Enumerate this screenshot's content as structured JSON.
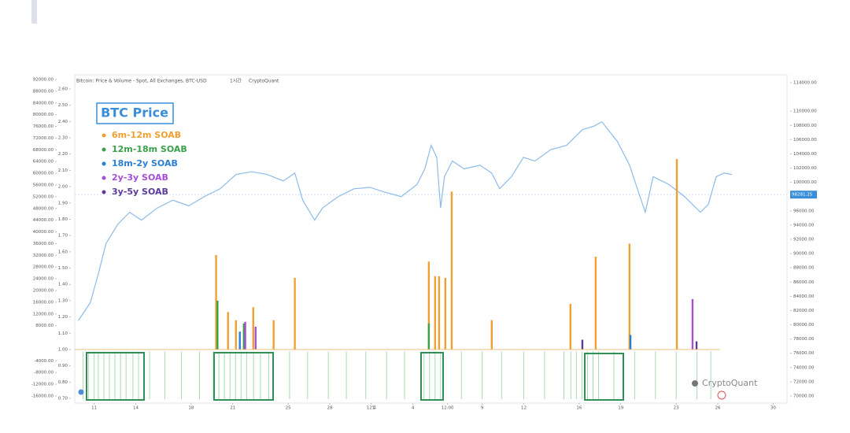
{
  "chart_data": {
    "type": "line",
    "title": "Bitcoin: Price & Volume - Spot, All Exchanges, BTC-USD",
    "subtitle": "1시간",
    "source": "CryptoQuant",
    "watermark": "CryptoQuant",
    "last_price": 98281.25,
    "baseline": 1,
    "grid": false,
    "xlim": [
      9.6,
      61
    ],
    "xticks": [
      {
        "value": 11,
        "label": "11"
      },
      {
        "value": 14,
        "label": "14"
      },
      {
        "value": 18,
        "label": "18"
      },
      {
        "value": 21,
        "label": "21"
      },
      {
        "value": 25,
        "label": "25"
      },
      {
        "value": 28,
        "label": "28"
      },
      {
        "value": 31,
        "label": "12월"
      },
      {
        "value": 34,
        "label": "4"
      },
      {
        "value": 36.5,
        "label": "12:00"
      },
      {
        "value": 39,
        "label": "9"
      },
      {
        "value": 42,
        "label": "12"
      },
      {
        "value": 46,
        "label": "16"
      },
      {
        "value": 49,
        "label": "19"
      },
      {
        "value": 53,
        "label": "23"
      },
      {
        "value": 56,
        "label": "26"
      },
      {
        "value": 60,
        "label": "30"
      }
    ],
    "ylim": [
      0.7,
      2.6
    ],
    "yticks": [
      {
        "value": 0.7,
        "label": "0.70"
      },
      {
        "value": 0.8,
        "label": "0.80"
      },
      {
        "value": 0.9,
        "label": "0.90"
      },
      {
        "value": 1.0,
        "label": "1.00"
      },
      {
        "value": 1.1,
        "label": "1.10"
      },
      {
        "value": 1.2,
        "label": "1.20"
      },
      {
        "value": 1.3,
        "label": "1.30"
      },
      {
        "value": 1.4,
        "label": "1.40"
      },
      {
        "value": 1.5,
        "label": "1.50"
      },
      {
        "value": 1.6,
        "label": "1.60"
      },
      {
        "value": 1.7,
        "label": "1.70"
      },
      {
        "value": 1.8,
        "label": "1.80"
      },
      {
        "value": 1.9,
        "label": "1.90"
      },
      {
        "value": 2.0,
        "label": "2.00"
      },
      {
        "value": 2.1,
        "label": "2.10"
      },
      {
        "value": 2.2,
        "label": "2.20"
      },
      {
        "value": 2.3,
        "label": "2.30"
      },
      {
        "value": 2.4,
        "label": "2.40"
      },
      {
        "value": 2.5,
        "label": "2.50"
      },
      {
        "value": 2.6,
        "label": "2.60"
      }
    ],
    "y2lim": [
      70000,
      114000
    ],
    "y2ticks": [
      {
        "value": 70000,
        "label": "70000.00"
      },
      {
        "value": 72000,
        "label": "72000.00"
      },
      {
        "value": 74000,
        "label": "74000.00"
      },
      {
        "value": 76000,
        "label": "76000.00"
      },
      {
        "value": 78000,
        "label": "78000.00"
      },
      {
        "value": 80000,
        "label": "80000.00"
      },
      {
        "value": 82000,
        "label": "82000.00"
      },
      {
        "value": 84000,
        "label": "84000.00"
      },
      {
        "value": 86000,
        "label": "86000.00"
      },
      {
        "value": 88000,
        "label": "88000.00"
      },
      {
        "value": 90000,
        "label": "90000.00"
      },
      {
        "value": 92000,
        "label": "92000.00"
      },
      {
        "value": 94000,
        "label": "94000.00"
      },
      {
        "value": 96000,
        "label": "96000.00"
      },
      {
        "value": 100000,
        "label": "100000.00"
      },
      {
        "value": 102000,
        "label": "102000.00"
      },
      {
        "value": 104000,
        "label": "104000.00"
      },
      {
        "value": 106000,
        "label": "106000.00"
      },
      {
        "value": 108000,
        "label": "108000.00"
      },
      {
        "value": 110000,
        "label": "110000.00"
      },
      {
        "value": 114000,
        "label": "114000.00"
      }
    ],
    "y3lim": [
      -16000,
      92000
    ],
    "y3ticks": [
      {
        "value": 92000,
        "label": "92000.00"
      },
      {
        "value": 88000,
        "label": "88000.00"
      },
      {
        "value": 84000,
        "label": "84000.00"
      },
      {
        "value": 80000,
        "label": "80000.00"
      },
      {
        "value": 76000,
        "label": "76000.00"
      },
      {
        "value": 72000,
        "label": "72000.00"
      },
      {
        "value": 68000,
        "label": "68000.00"
      },
      {
        "value": 64000,
        "label": "64000.00"
      },
      {
        "value": 60000,
        "label": "60000.00"
      },
      {
        "value": 56000,
        "label": "56000.00"
      },
      {
        "value": 52000,
        "label": "52000.00"
      },
      {
        "value": 48000,
        "label": "48000.00"
      },
      {
        "value": 44000,
        "label": "44000.00"
      },
      {
        "value": 40000,
        "label": "40000.00"
      },
      {
        "value": 36000,
        "label": "36000.00"
      },
      {
        "value": 32000,
        "label": "32000.00"
      },
      {
        "value": 28000,
        "label": "28000.00"
      },
      {
        "value": 24000,
        "label": "24000.00"
      },
      {
        "value": 20000,
        "label": "20000.00"
      },
      {
        "value": 16000,
        "label": "16000.00"
      },
      {
        "value": 12000,
        "label": "12000.00"
      },
      {
        "value": 8000,
        "label": "8000.00"
      },
      {
        "value": -4000,
        "label": "-4000.00"
      },
      {
        "value": -8000,
        "label": "-8000.00"
      },
      {
        "value": -12000,
        "label": "-12000.00"
      },
      {
        "value": -16000,
        "label": "-16000.00"
      }
    ],
    "series": [
      {
        "name": "BTC Price",
        "type": "line",
        "axis": "y2",
        "color": "#8cbbe8",
        "x": [
          9.86,
          10.72,
          11.28,
          11.85,
          12.7,
          13.56,
          14.41,
          15.55,
          16.68,
          17.82,
          18.95,
          20.09,
          21.23,
          22.36,
          23.5,
          24.64,
          25.48,
          26.05,
          26.91,
          27.48,
          28.61,
          29.75,
          30.89,
          32.02,
          33.16,
          34.3,
          34.86,
          35.32,
          35.72,
          36.0,
          36.28,
          36.85,
          37.7,
          38.84,
          39.69,
          40.26,
          41.11,
          41.98,
          42.81,
          43.95,
          45.09,
          46.23,
          47.07,
          47.64,
          48.77,
          49.64,
          50.2,
          50.77,
          51.34,
          52.48,
          53.61,
          54.18,
          54.75,
          55.32,
          55.89,
          56.45,
          57.02
        ],
        "values": [
          80600,
          83100,
          87000,
          91400,
          94100,
          95800,
          94700,
          96400,
          97500,
          96700,
          98000,
          99100,
          101100,
          101500,
          101100,
          100200,
          101300,
          97500,
          94700,
          96400,
          98000,
          99100,
          99300,
          98600,
          98000,
          99700,
          101900,
          105200,
          103500,
          96400,
          100800,
          103000,
          101900,
          102400,
          101300,
          99100,
          100800,
          103500,
          103000,
          104600,
          105200,
          107400,
          107900,
          108500,
          105700,
          102400,
          99100,
          95800,
          100800,
          99700,
          98000,
          96900,
          95800,
          96900,
          100800,
          101300,
          101100
        ]
      },
      {
        "name": "6m-12m SOAB",
        "type": "bar",
        "axis": "y",
        "color": "#f0a030",
        "x": [
          19.8,
          20.66,
          21.23,
          22.48,
          23.95,
          25.48,
          35.15,
          35.6,
          35.89,
          36.34,
          36.8,
          39.69,
          45.37,
          47.19,
          49.63,
          53.05
        ],
        "values": [
          1.58,
          1.23,
          1.18,
          1.26,
          1.18,
          1.44,
          1.54,
          1.45,
          1.45,
          1.44,
          1.97,
          1.18,
          1.28,
          1.57,
          1.65,
          2.17
        ]
      },
      {
        "name": "12m-18m SOAB",
        "type": "bar",
        "axis": "y",
        "color": "#3aa04a",
        "x": [
          19.9,
          21.8,
          35.15
        ],
        "values": [
          1.3,
          1.16,
          1.16
        ]
      },
      {
        "name": "18m-2y SOAB",
        "type": "bar",
        "axis": "y",
        "color": "#2a7fd0",
        "x": [
          21.51,
          49.7
        ],
        "values": [
          1.11,
          1.09
        ]
      },
      {
        "name": "2y-3y SOAB",
        "type": "bar",
        "axis": "y",
        "color": "#a64fd6",
        "x": [
          21.9,
          22.65,
          54.18
        ],
        "values": [
          1.17,
          1.14,
          1.31
        ]
      },
      {
        "name": "3y-5y SOAB",
        "type": "bar",
        "axis": "y",
        "color": "#5b3a9a",
        "x": [
          46.23,
          54.47
        ],
        "values": [
          1.06,
          1.05
        ]
      }
    ],
    "volume_markers": {
      "color": "#a6dbb0",
      "x": [
        10.2,
        10.6,
        11.0,
        11.3,
        11.7,
        12.1,
        12.5,
        12.9,
        13.3,
        13.8,
        14.2,
        15.0,
        16.1,
        17.3,
        18.6,
        19.6,
        20.0,
        20.4,
        20.8,
        21.2,
        21.6,
        22.0,
        22.5,
        23.0,
        23.6,
        25.1,
        26.4,
        27.9,
        29.2,
        30.6,
        32.1,
        33.4,
        34.8,
        35.2,
        35.6,
        36.0,
        37.5,
        39.0,
        40.4,
        42.0,
        43.5,
        44.9,
        45.4,
        45.8,
        46.2,
        46.6,
        47.0,
        47.4,
        48.5,
        50.0,
        51.5,
        53.0,
        54.5,
        55.5
      ]
    }
  }
}
